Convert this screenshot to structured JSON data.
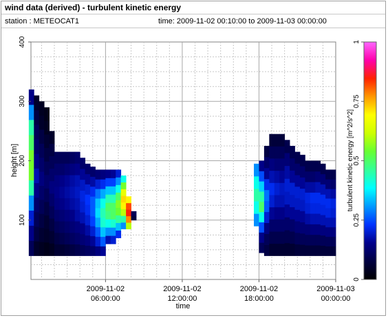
{
  "header": {
    "title": "wind data (derived) - turbulent kinetic energy",
    "station": "station : METEOCAT1",
    "time_range": "time: 2009-11-02 00:10:00 to 2009-11-03 00:00:00"
  },
  "chart_data": {
    "type": "heatmap",
    "xlabel": "time",
    "ylabel": "height [m]",
    "x_ticks": [
      {
        "hour": 6,
        "line1": "2009-11-02",
        "line2": "06:00:00"
      },
      {
        "hour": 12,
        "line1": "2009-11-02",
        "line2": "12:00:00"
      },
      {
        "hour": 18,
        "line1": "2009-11-02",
        "line2": "18:00:00"
      },
      {
        "hour": 24,
        "line1": "2009-11-03",
        "line2": "00:00:00"
      }
    ],
    "y_ticks": [
      100,
      200,
      300,
      400
    ],
    "xlim_hours": [
      0.17,
      24
    ],
    "ylim": [
      0,
      400
    ],
    "grid": true,
    "colorbar": {
      "label": "turbulent kinetic energy [m^2/s^2]",
      "range": [
        0,
        1
      ],
      "ticks": [
        "0",
        "0.25",
        "0.5",
        "0.75",
        "1"
      ],
      "colormap": [
        "#000000",
        "#000040",
        "#00008b",
        "#0033ff",
        "#0099ff",
        "#00ffff",
        "#33ff99",
        "#66ff33",
        "#ccff00",
        "#ffff00",
        "#ff9900",
        "#ff2200",
        "#ff00aa",
        "#ff66ff"
      ]
    },
    "columns_note": "time (hours), data top height (m) and turbulent kinetic energy profile from bottom to top",
    "columns": [
      {
        "t": 0.2,
        "top": 320,
        "bot": 40,
        "vals": [
          0.1,
          0.15,
          0.2,
          0.3,
          0.45,
          0.55,
          0.55,
          0.5,
          0.45,
          0.3,
          0.15
        ]
      },
      {
        "t": 0.6,
        "top": 310,
        "bot": 40,
        "vals": [
          0.05,
          0.08,
          0.1,
          0.12,
          0.15,
          0.18,
          0.15,
          0.12,
          0.1,
          0.08,
          0.05
        ]
      },
      {
        "t": 1.0,
        "top": 300,
        "bot": 40,
        "vals": [
          0.04,
          0.06,
          0.08,
          0.1,
          0.12,
          0.14,
          0.12,
          0.1,
          0.08,
          0.05,
          0.04
        ]
      },
      {
        "t": 1.4,
        "top": 290,
        "bot": 40,
        "vals": [
          0.03,
          0.05,
          0.06,
          0.08,
          0.1,
          0.12,
          0.1,
          0.08,
          0.06,
          0.04,
          0.03
        ]
      },
      {
        "t": 1.8,
        "top": 250,
        "bot": 40,
        "vals": [
          0.04,
          0.06,
          0.08,
          0.1,
          0.12,
          0.14,
          0.12,
          0.1,
          0.08,
          0.05
        ]
      },
      {
        "t": 2.2,
        "top": 215,
        "bot": 40,
        "vals": [
          0.06,
          0.08,
          0.1,
          0.12,
          0.14,
          0.15,
          0.14,
          0.12,
          0.1
        ]
      },
      {
        "t": 2.6,
        "top": 215,
        "bot": 40,
        "vals": [
          0.06,
          0.09,
          0.11,
          0.13,
          0.15,
          0.16,
          0.15,
          0.12,
          0.1
        ]
      },
      {
        "t": 3.0,
        "top": 215,
        "bot": 40,
        "vals": [
          0.07,
          0.1,
          0.12,
          0.14,
          0.16,
          0.17,
          0.16,
          0.13,
          0.1
        ]
      },
      {
        "t": 3.4,
        "top": 215,
        "bot": 40,
        "vals": [
          0.08,
          0.11,
          0.13,
          0.15,
          0.17,
          0.18,
          0.17,
          0.14,
          0.11
        ]
      },
      {
        "t": 3.8,
        "top": 215,
        "bot": 40,
        "vals": [
          0.09,
          0.12,
          0.14,
          0.17,
          0.18,
          0.19,
          0.18,
          0.15,
          0.12
        ]
      },
      {
        "t": 4.2,
        "top": 205,
        "bot": 40,
        "vals": [
          0.1,
          0.13,
          0.15,
          0.18,
          0.2,
          0.21,
          0.19,
          0.16,
          0.12
        ]
      },
      {
        "t": 4.6,
        "top": 195,
        "bot": 40,
        "vals": [
          0.11,
          0.14,
          0.17,
          0.2,
          0.22,
          0.23,
          0.2,
          0.16,
          0.12
        ]
      },
      {
        "t": 5.0,
        "top": 190,
        "bot": 40,
        "vals": [
          0.12,
          0.16,
          0.2,
          0.24,
          0.26,
          0.26,
          0.22,
          0.17,
          0.12
        ]
      },
      {
        "t": 5.4,
        "top": 185,
        "bot": 40,
        "vals": [
          0.14,
          0.2,
          0.26,
          0.32,
          0.36,
          0.34,
          0.28,
          0.2,
          0.13
        ]
      },
      {
        "t": 5.8,
        "top": 185,
        "bot": 40,
        "vals": [
          0.16,
          0.26,
          0.34,
          0.42,
          0.44,
          0.4,
          0.32,
          0.22,
          0.14
        ]
      },
      {
        "t": 6.2,
        "top": 185,
        "bot": 60,
        "vals": [
          0.18,
          0.3,
          0.4,
          0.48,
          0.5,
          0.44,
          0.34,
          0.24,
          0.15
        ]
      },
      {
        "t": 6.6,
        "top": 185,
        "bot": 60,
        "vals": [
          0.2,
          0.3,
          0.42,
          0.5,
          0.5,
          0.44,
          0.34,
          0.24,
          0.16
        ]
      },
      {
        "t": 7.0,
        "top": 185,
        "bot": 70,
        "vals": [
          0.22,
          0.34,
          0.46,
          0.54,
          0.56,
          0.5,
          0.4,
          0.3,
          0.2
        ]
      },
      {
        "t": 7.4,
        "top": 175,
        "bot": 85,
        "vals": [
          0.3,
          0.45,
          0.6,
          0.7,
          0.72,
          0.66,
          0.55,
          0.4
        ]
      },
      {
        "t": 7.8,
        "top": 140,
        "bot": 85,
        "vals": [
          0.6,
          0.78,
          0.85,
          0.82,
          0.7
        ]
      },
      {
        "t": 8.2,
        "top": 115,
        "bot": 100,
        "vals": [
          0.08,
          0.1
        ]
      },
      {
        "t": 17.8,
        "top": 195,
        "bot": 90,
        "vals": [
          0.3,
          0.4,
          0.45,
          0.4,
          0.3
        ]
      },
      {
        "t": 18.2,
        "top": 200,
        "bot": 45,
        "vals": [
          0.1,
          0.15,
          0.25,
          0.4,
          0.5,
          0.45,
          0.35,
          0.25,
          0.15
        ]
      },
      {
        "t": 18.6,
        "top": 225,
        "bot": 40,
        "vals": [
          0.08,
          0.1,
          0.14,
          0.2,
          0.26,
          0.28,
          0.22,
          0.16,
          0.12,
          0.08
        ]
      },
      {
        "t": 19.0,
        "top": 245,
        "bot": 40,
        "vals": [
          0.06,
          0.09,
          0.12,
          0.16,
          0.2,
          0.22,
          0.18,
          0.14,
          0.1,
          0.07
        ]
      },
      {
        "t": 19.4,
        "top": 245,
        "bot": 40,
        "vals": [
          0.06,
          0.09,
          0.12,
          0.15,
          0.18,
          0.2,
          0.17,
          0.13,
          0.1,
          0.07
        ]
      },
      {
        "t": 19.8,
        "top": 245,
        "bot": 40,
        "vals": [
          0.06,
          0.09,
          0.12,
          0.15,
          0.18,
          0.19,
          0.16,
          0.13,
          0.1,
          0.07
        ]
      },
      {
        "t": 20.2,
        "top": 235,
        "bot": 40,
        "vals": [
          0.06,
          0.09,
          0.12,
          0.16,
          0.19,
          0.2,
          0.17,
          0.13,
          0.09
        ]
      },
      {
        "t": 20.6,
        "top": 225,
        "bot": 40,
        "vals": [
          0.06,
          0.09,
          0.12,
          0.16,
          0.19,
          0.2,
          0.16,
          0.12,
          0.09
        ]
      },
      {
        "t": 21.0,
        "top": 215,
        "bot": 40,
        "vals": [
          0.07,
          0.1,
          0.13,
          0.16,
          0.19,
          0.2,
          0.16,
          0.12,
          0.09
        ]
      },
      {
        "t": 21.4,
        "top": 210,
        "bot": 40,
        "vals": [
          0.07,
          0.1,
          0.13,
          0.16,
          0.19,
          0.2,
          0.16,
          0.12,
          0.09
        ]
      },
      {
        "t": 21.8,
        "top": 200,
        "bot": 40,
        "vals": [
          0.07,
          0.1,
          0.13,
          0.17,
          0.2,
          0.21,
          0.17,
          0.12,
          0.09
        ]
      },
      {
        "t": 22.2,
        "top": 200,
        "bot": 40,
        "vals": [
          0.07,
          0.1,
          0.14,
          0.18,
          0.21,
          0.22,
          0.17,
          0.12,
          0.09
        ]
      },
      {
        "t": 22.6,
        "top": 200,
        "bot": 40,
        "vals": [
          0.07,
          0.1,
          0.14,
          0.18,
          0.21,
          0.22,
          0.18,
          0.13,
          0.09
        ]
      },
      {
        "t": 23.0,
        "top": 195,
        "bot": 40,
        "vals": [
          0.07,
          0.1,
          0.14,
          0.18,
          0.21,
          0.22,
          0.18,
          0.13,
          0.09
        ]
      },
      {
        "t": 23.4,
        "top": 185,
        "bot": 40,
        "vals": [
          0.07,
          0.1,
          0.14,
          0.18,
          0.21,
          0.22,
          0.18,
          0.13,
          0.09
        ]
      },
      {
        "t": 23.8,
        "top": 185,
        "bot": 40,
        "vals": [
          0.07,
          0.1,
          0.14,
          0.18,
          0.2,
          0.21,
          0.17,
          0.12,
          0.09
        ]
      }
    ]
  }
}
